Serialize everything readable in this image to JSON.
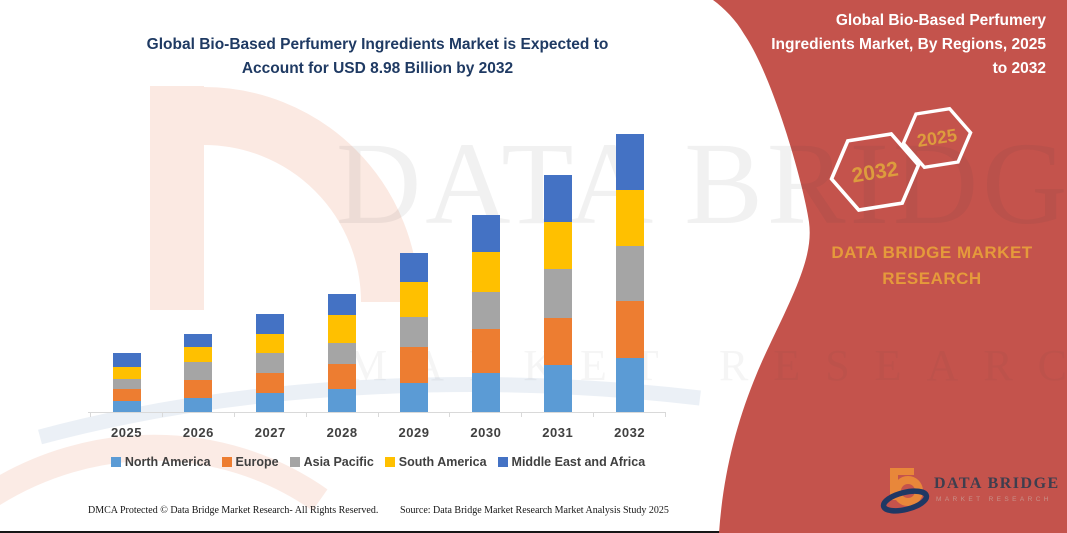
{
  "chart_title_lines": [
    "Global Bio-Based Perfumery Ingredients Market is Expected to",
    "Account for USD 8.98 Billion by 2032"
  ],
  "chart_title": "Global Bio-Based Perfumery Ingredients Market is Expected to Account for USD 8.98 Billion by 2032",
  "chart_data": {
    "type": "bar",
    "stacked": true,
    "unit": "USD Billion",
    "total_2032": 8.98,
    "categories": [
      "2025",
      "2026",
      "2027",
      "2028",
      "2029",
      "2030",
      "2031",
      "2032"
    ],
    "series": [
      {
        "name": "North America",
        "color": "#5B9BD5",
        "values": [
          0.37,
          0.45,
          0.62,
          0.75,
          0.94,
          1.25,
          1.51,
          1.75
        ]
      },
      {
        "name": "Europe",
        "color": "#ED7D31",
        "values": [
          0.36,
          0.59,
          0.65,
          0.81,
          1.16,
          1.42,
          1.54,
          1.83
        ]
      },
      {
        "name": "Asia Pacific",
        "color": "#A5A5A5",
        "values": [
          0.35,
          0.57,
          0.64,
          0.67,
          0.97,
          1.21,
          1.56,
          1.78
        ]
      },
      {
        "name": "South America",
        "color": "#FFC000",
        "values": [
          0.37,
          0.48,
          0.62,
          0.89,
          1.13,
          1.27,
          1.51,
          1.81
        ]
      },
      {
        "name": "Middle East and Africa",
        "color": "#4472C4",
        "values": [
          0.46,
          0.42,
          0.64,
          0.7,
          0.94,
          1.19,
          1.54,
          1.81
        ]
      }
    ],
    "totals": [
      1.91,
      2.51,
      3.17,
      3.82,
      5.14,
      6.34,
      7.66,
      8.98
    ],
    "xlabel": "",
    "ylabel": "",
    "grid": false,
    "legend_position": "bottom"
  },
  "right_panel": {
    "title": "Global Bio-Based Perfumery Ingredients Market, By Regions, 2025 to 2032",
    "title_lines": [
      "Global Bio-Based Perfumery",
      "Ingredients Market, By Regions, 2025",
      "to 2032"
    ],
    "hexagon_back_label": "2032",
    "hexagon_front_label": "2025",
    "brand_text": "DATA BRIDGE MARKET RESEARCH"
  },
  "watermark": {
    "line1": "DATA BRIDGE",
    "line2": "MARKET RESEARCH"
  },
  "logo": {
    "name": "DATA BRIDGE",
    "sub": "MARKET RESEARCH"
  },
  "footer": {
    "dmca": "DMCA Protected © Data Bridge Market Research- All Rights Reserved.",
    "source": "Source: Data Bridge Market Research Market Analysis Study 2025"
  },
  "colors": {
    "panel_red": "#C4534C",
    "title_navy": "#1F3A63",
    "gold_text": "#E59A3B",
    "hexagon_gold": "#DD9C3D",
    "axis_gray": "#D9D9D9",
    "label_gray": "#404040"
  }
}
